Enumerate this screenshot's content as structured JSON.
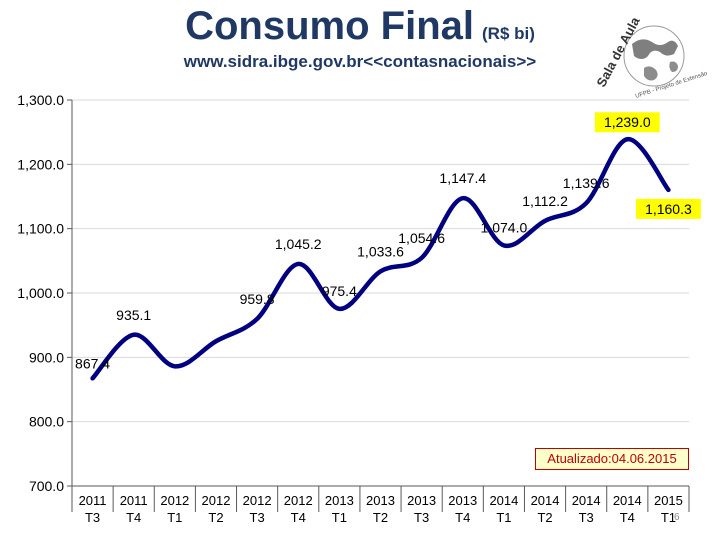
{
  "header": {
    "title": "Consumo Final",
    "unit": "(R$ bi)",
    "source": "www.sidra.ibge.gov.br<<contasnacionais>>"
  },
  "logo": {
    "text": "Sala de Aula",
    "subtext": "UFPB - Projeto de Extensão",
    "icon": "globe-map-icon"
  },
  "updated_label": "Atualizado:04.06.2015",
  "page_number": "6",
  "colors": {
    "line": "#000080",
    "title": "#1f3864",
    "highlight": "#ffff00",
    "grid": "#d9d9d9",
    "updated_border": "#c00000"
  },
  "chart_data": {
    "type": "line",
    "categories": [
      [
        "2011",
        "T3"
      ],
      [
        "2011",
        "T4"
      ],
      [
        "2012",
        "T1"
      ],
      [
        "2012",
        "T2"
      ],
      [
        "2012",
        "T3"
      ],
      [
        "2012",
        "T4"
      ],
      [
        "2013",
        "T1"
      ],
      [
        "2013",
        "T2"
      ],
      [
        "2013",
        "T3"
      ],
      [
        "2013",
        "T4"
      ],
      [
        "2014",
        "T1"
      ],
      [
        "2014",
        "T2"
      ],
      [
        "2014",
        "T3"
      ],
      [
        "2014",
        "T4"
      ],
      [
        "2015",
        "T1"
      ]
    ],
    "values": [
      867.4,
      935.1,
      886.0,
      925.0,
      959.8,
      1045.2,
      975.4,
      1033.6,
      1054.6,
      1147.4,
      1074.0,
      1112.2,
      1139.6,
      1239.0,
      1160.3
    ],
    "labels": [
      "867.4",
      "935.1",
      "",
      "",
      "959.8",
      "1,045.2",
      "975.4",
      "1,033.6",
      "1,054.6",
      "1,147.4",
      "1,074.0",
      "1,112.2",
      "1,139.6",
      "1,239.0",
      "1,160.3"
    ],
    "highlighted": [
      13,
      14
    ],
    "ylim": [
      700,
      1300
    ],
    "yticks": [
      "700.0",
      "800.0",
      "900.0",
      "1,000.0",
      "1,100.0",
      "1,200.0",
      "1,300.0"
    ],
    "ytick_values": [
      700,
      800,
      900,
      1000,
      1100,
      1200,
      1300
    ],
    "grid": true,
    "legend": "none"
  }
}
